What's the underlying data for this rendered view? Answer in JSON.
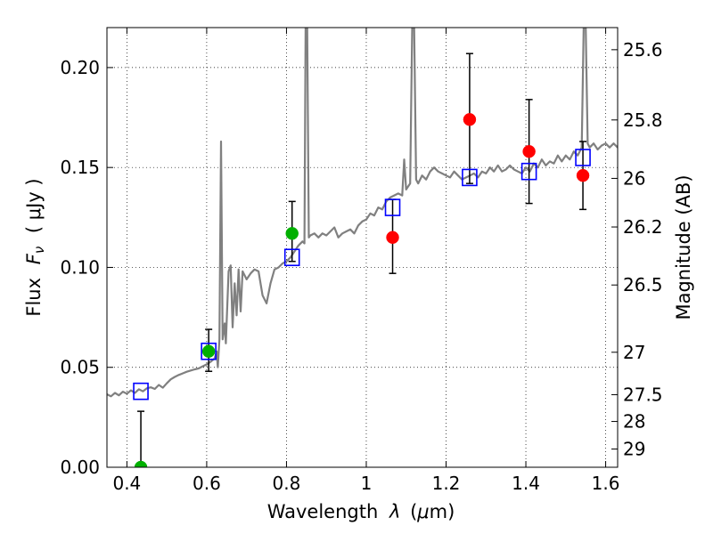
{
  "chart_data": {
    "type": "scatter",
    "xlabel_main": "Wavelength",
    "xlabel_sym": "λ",
    "xlabel_unit_open": "(",
    "xlabel_unit_mu": "μ",
    "xlabel_unit_rest": "m)",
    "ylabel_main": "Flux",
    "ylabel_sym": "F",
    "ylabel_sub": "ν",
    "ylabel_unit": "( μJy )",
    "y2label": "Magnitude (AB)",
    "xlim": [
      0.35,
      1.63
    ],
    "ylim": [
      0,
      0.22
    ],
    "x_ticks": [
      0.4,
      0.6,
      0.8,
      1.0,
      1.2,
      1.4,
      1.6
    ],
    "x_tick_labels": [
      "0.4",
      "0.6",
      "0.8",
      "1",
      "1.2",
      "1.4",
      "1.6"
    ],
    "y_ticks": [
      0.0,
      0.05,
      0.1,
      0.15,
      0.2
    ],
    "y_tick_labels": [
      "0.00",
      "0.05",
      "0.10",
      "0.15",
      "0.20"
    ],
    "mag_ticks": [
      25.6,
      25.8,
      26,
      26.2,
      26.5,
      27,
      27.5,
      28,
      29
    ],
    "mag_tick_labels": [
      "25.6",
      "25.8",
      "26",
      "26.2",
      "26.5",
      "27",
      "27.5",
      "28",
      "29"
    ],
    "grid": true,
    "colors": {
      "spectrum": "#808080",
      "green_points": "#00b000",
      "red_points": "#ff0000",
      "model_boxes": "#0000ff",
      "errorbars": "#000000"
    },
    "series": [
      {
        "kind": "line",
        "points": [
          [
            0.35,
            0.0365
          ],
          [
            0.36,
            0.0355
          ],
          [
            0.37,
            0.0372
          ],
          [
            0.38,
            0.036
          ],
          [
            0.39,
            0.0378
          ],
          [
            0.4,
            0.0368
          ],
          [
            0.41,
            0.0385
          ],
          [
            0.42,
            0.0372
          ],
          [
            0.43,
            0.039
          ],
          [
            0.44,
            0.038
          ],
          [
            0.45,
            0.0395
          ],
          [
            0.46,
            0.04
          ],
          [
            0.47,
            0.0392
          ],
          [
            0.48,
            0.0412
          ],
          [
            0.49,
            0.0398
          ],
          [
            0.5,
            0.042
          ],
          [
            0.51,
            0.044
          ],
          [
            0.52,
            0.0452
          ],
          [
            0.53,
            0.0462
          ],
          [
            0.54,
            0.047
          ],
          [
            0.55,
            0.0478
          ],
          [
            0.56,
            0.0484
          ],
          [
            0.57,
            0.049
          ],
          [
            0.58,
            0.0495
          ],
          [
            0.59,
            0.0505
          ],
          [
            0.6,
            0.0515
          ],
          [
            0.61,
            0.0528
          ],
          [
            0.62,
            0.0545
          ],
          [
            0.625,
            0.058
          ],
          [
            0.628,
            0.05
          ],
          [
            0.632,
            0.064
          ],
          [
            0.636,
            0.163
          ],
          [
            0.64,
            0.064
          ],
          [
            0.645,
            0.072
          ],
          [
            0.648,
            0.062
          ],
          [
            0.655,
            0.098
          ],
          [
            0.66,
            0.101
          ],
          [
            0.665,
            0.07
          ],
          [
            0.67,
            0.092
          ],
          [
            0.675,
            0.076
          ],
          [
            0.68,
            0.099
          ],
          [
            0.685,
            0.078
          ],
          [
            0.69,
            0.098
          ],
          [
            0.7,
            0.094
          ],
          [
            0.71,
            0.097
          ],
          [
            0.72,
            0.099
          ],
          [
            0.73,
            0.098
          ],
          [
            0.74,
            0.086
          ],
          [
            0.75,
            0.082
          ],
          [
            0.76,
            0.092
          ],
          [
            0.77,
            0.099
          ],
          [
            0.78,
            0.1
          ],
          [
            0.79,
            0.102
          ],
          [
            0.8,
            0.103
          ],
          [
            0.81,
            0.105
          ],
          [
            0.82,
            0.108
          ],
          [
            0.83,
            0.111
          ],
          [
            0.84,
            0.113
          ],
          [
            0.845,
            0.112
          ],
          [
            0.848,
            0.22
          ],
          [
            0.852,
            0.22
          ],
          [
            0.856,
            0.115
          ],
          [
            0.86,
            0.116
          ],
          [
            0.87,
            0.117
          ],
          [
            0.88,
            0.115
          ],
          [
            0.89,
            0.117
          ],
          [
            0.9,
            0.116
          ],
          [
            0.91,
            0.118
          ],
          [
            0.92,
            0.12
          ],
          [
            0.93,
            0.115
          ],
          [
            0.94,
            0.117
          ],
          [
            0.95,
            0.118
          ],
          [
            0.96,
            0.119
          ],
          [
            0.97,
            0.117
          ],
          [
            0.98,
            0.121
          ],
          [
            0.99,
            0.123
          ],
          [
            1.0,
            0.124
          ],
          [
            1.01,
            0.127
          ],
          [
            1.02,
            0.126
          ],
          [
            1.03,
            0.13
          ],
          [
            1.04,
            0.129
          ],
          [
            1.05,
            0.133
          ],
          [
            1.06,
            0.135
          ],
          [
            1.07,
            0.136
          ],
          [
            1.08,
            0.137
          ],
          [
            1.09,
            0.136
          ],
          [
            1.095,
            0.154
          ],
          [
            1.1,
            0.139
          ],
          [
            1.11,
            0.142
          ],
          [
            1.115,
            0.22
          ],
          [
            1.12,
            0.22
          ],
          [
            1.125,
            0.144
          ],
          [
            1.13,
            0.142
          ],
          [
            1.14,
            0.146
          ],
          [
            1.15,
            0.144
          ],
          [
            1.16,
            0.148
          ],
          [
            1.17,
            0.15
          ],
          [
            1.18,
            0.148
          ],
          [
            1.19,
            0.147
          ],
          [
            1.2,
            0.146
          ],
          [
            1.21,
            0.145
          ],
          [
            1.22,
            0.148
          ],
          [
            1.23,
            0.146
          ],
          [
            1.24,
            0.144
          ],
          [
            1.25,
            0.145
          ],
          [
            1.26,
            0.146
          ],
          [
            1.27,
            0.147
          ],
          [
            1.28,
            0.145
          ],
          [
            1.29,
            0.148
          ],
          [
            1.3,
            0.147
          ],
          [
            1.31,
            0.15
          ],
          [
            1.32,
            0.148
          ],
          [
            1.33,
            0.151
          ],
          [
            1.34,
            0.148
          ],
          [
            1.35,
            0.149
          ],
          [
            1.36,
            0.151
          ],
          [
            1.37,
            0.149
          ],
          [
            1.38,
            0.148
          ],
          [
            1.39,
            0.147
          ],
          [
            1.4,
            0.15
          ],
          [
            1.41,
            0.148
          ],
          [
            1.42,
            0.152
          ],
          [
            1.43,
            0.15
          ],
          [
            1.44,
            0.154
          ],
          [
            1.45,
            0.151
          ],
          [
            1.46,
            0.153
          ],
          [
            1.47,
            0.152
          ],
          [
            1.48,
            0.156
          ],
          [
            1.49,
            0.153
          ],
          [
            1.5,
            0.156
          ],
          [
            1.51,
            0.154
          ],
          [
            1.52,
            0.158
          ],
          [
            1.53,
            0.156
          ],
          [
            1.54,
            0.16
          ],
          [
            1.545,
            0.22
          ],
          [
            1.55,
            0.22
          ],
          [
            1.555,
            0.162
          ],
          [
            1.56,
            0.16
          ],
          [
            1.57,
            0.162
          ],
          [
            1.58,
            0.159
          ],
          [
            1.59,
            0.161
          ],
          [
            1.6,
            0.162
          ],
          [
            1.61,
            0.16
          ],
          [
            1.62,
            0.162
          ],
          [
            1.63,
            0.16
          ]
        ]
      },
      {
        "kind": "points",
        "color_key": "green_points",
        "points": [
          {
            "x": 0.435,
            "y": 0.0,
            "err_low": 0.0,
            "err_high": 0.028
          },
          {
            "x": 0.605,
            "y": 0.058,
            "err_low": 0.048,
            "err_high": 0.069
          },
          {
            "x": 0.814,
            "y": 0.117,
            "err_low": 0.103,
            "err_high": 0.133
          }
        ]
      },
      {
        "kind": "points",
        "color_key": "red_points",
        "points": [
          {
            "x": 1.066,
            "y": 0.115,
            "err_low": 0.097,
            "err_high": 0.134
          },
          {
            "x": 1.259,
            "y": 0.174,
            "err_low": 0.142,
            "err_high": 0.207
          },
          {
            "x": 1.408,
            "y": 0.158,
            "err_low": 0.132,
            "err_high": 0.184
          },
          {
            "x": 1.543,
            "y": 0.146,
            "err_low": 0.129,
            "err_high": 0.163
          }
        ]
      },
      {
        "kind": "boxes",
        "color_key": "model_boxes",
        "points": [
          {
            "x": 0.435,
            "y": 0.038
          },
          {
            "x": 0.605,
            "y": 0.058
          },
          {
            "x": 0.814,
            "y": 0.105
          },
          {
            "x": 1.066,
            "y": 0.13
          },
          {
            "x": 1.259,
            "y": 0.145
          },
          {
            "x": 1.408,
            "y": 0.148
          },
          {
            "x": 1.543,
            "y": 0.155
          }
        ]
      }
    ]
  }
}
